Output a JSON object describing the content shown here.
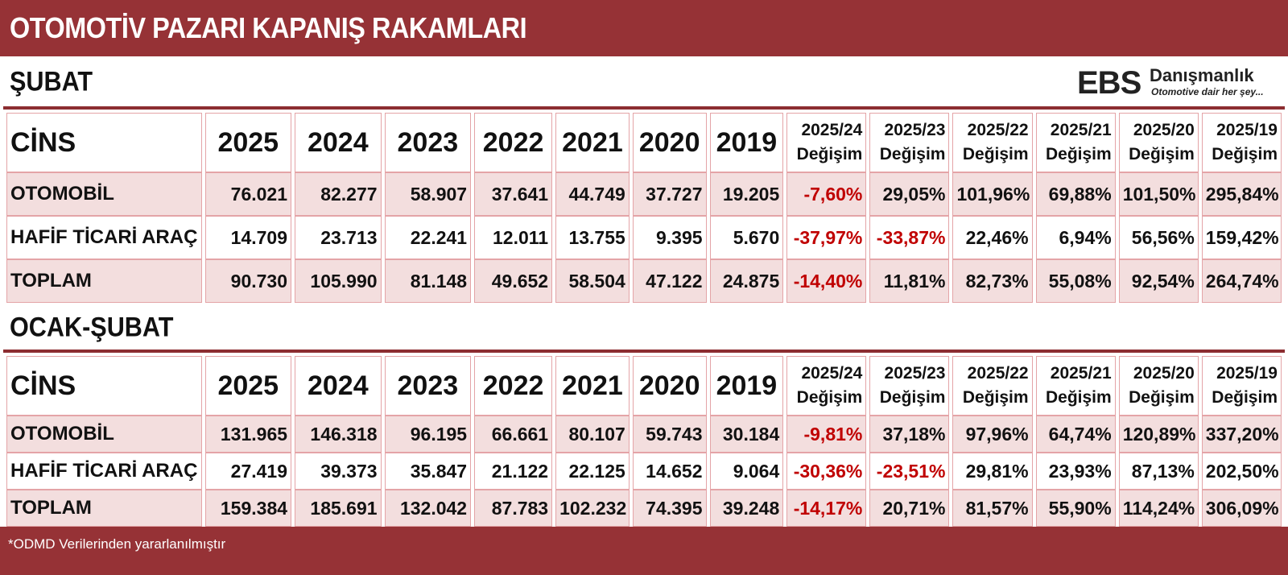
{
  "title": "OTOMOTİV PAZARI KAPANIŞ RAKAMLARI",
  "logo": {
    "mark": "EBS",
    "name": "Danışmanlık",
    "tagline": "Otomotive dair her şey..."
  },
  "colors": {
    "band": "#963236",
    "accent_red": "#c00000",
    "row_shade": "#f3dede",
    "cell_border": "#e4a4a7"
  },
  "headers": {
    "cins": "CİNS",
    "years": [
      "2025",
      "2024",
      "2023",
      "2022",
      "2021",
      "2020",
      "2019"
    ],
    "changes": [
      {
        "period": "2025/24",
        "label": "Değişim"
      },
      {
        "period": "2025/23",
        "label": "Değişim"
      },
      {
        "period": "2025/22",
        "label": "Değişim"
      },
      {
        "period": "2025/21",
        "label": "Değişim"
      },
      {
        "period": "2025/20",
        "label": "Değişim"
      },
      {
        "period": "2025/19",
        "label": "Değişim"
      }
    ]
  },
  "sections": [
    {
      "title": "ŞUBAT",
      "rows": [
        {
          "name": "OTOMOBİL",
          "values": [
            "76.021",
            "82.277",
            "58.907",
            "37.641",
            "44.749",
            "37.727",
            "19.205"
          ],
          "changes": [
            "-7,60%",
            "29,05%",
            "101,96%",
            "69,88%",
            "101,50%",
            "295,84%"
          ]
        },
        {
          "name": "HAFİF TİCARİ ARAÇ",
          "values": [
            "14.709",
            "23.713",
            "22.241",
            "12.011",
            "13.755",
            "9.395",
            "5.670"
          ],
          "changes": [
            "-37,97%",
            "-33,87%",
            "22,46%",
            "6,94%",
            "56,56%",
            "159,42%"
          ]
        },
        {
          "name": "TOPLAM",
          "values": [
            "90.730",
            "105.990",
            "81.148",
            "49.652",
            "58.504",
            "47.122",
            "24.875"
          ],
          "changes": [
            "-14,40%",
            "11,81%",
            "82,73%",
            "55,08%",
            "92,54%",
            "264,74%"
          ]
        }
      ]
    },
    {
      "title": "OCAK-ŞUBAT",
      "rows": [
        {
          "name": "OTOMOBİL",
          "values": [
            "131.965",
            "146.318",
            "96.195",
            "66.661",
            "80.107",
            "59.743",
            "30.184"
          ],
          "changes": [
            "-9,81%",
            "37,18%",
            "97,96%",
            "64,74%",
            "120,89%",
            "337,20%"
          ]
        },
        {
          "name": "HAFİF TİCARİ ARAÇ",
          "values": [
            "27.419",
            "39.373",
            "35.847",
            "21.122",
            "22.125",
            "14.652",
            "9.064"
          ],
          "changes": [
            "-30,36%",
            "-23,51%",
            "29,81%",
            "23,93%",
            "87,13%",
            "202,50%"
          ]
        },
        {
          "name": "TOPLAM",
          "values": [
            "159.384",
            "185.691",
            "132.042",
            "87.783",
            "102.232",
            "74.395",
            "39.248"
          ],
          "changes": [
            "-14,17%",
            "20,71%",
            "81,57%",
            "55,90%",
            "114,24%",
            "306,09%"
          ]
        }
      ]
    }
  ],
  "footer": "*ODMD Verilerinden yararlanılmıştır"
}
